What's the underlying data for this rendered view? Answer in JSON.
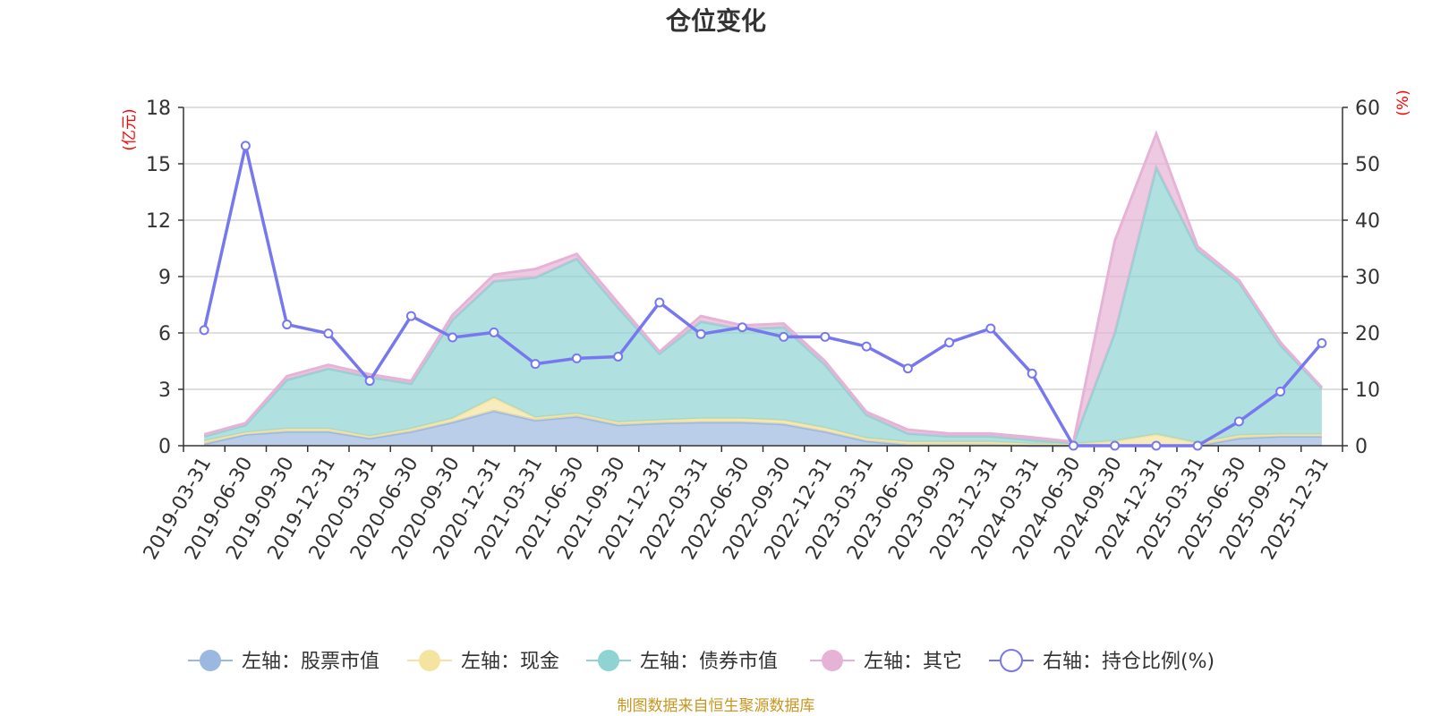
{
  "chart_data": {
    "type": "area",
    "title": "仓位变化",
    "left_axis_unit": "(亿元)",
    "right_axis_unit": "(%)",
    "left_ticks": [
      0,
      3,
      6,
      9,
      12,
      15,
      18
    ],
    "right_ticks": [
      0,
      10,
      20,
      30,
      40,
      50,
      60
    ],
    "left_ylim": [
      0,
      18
    ],
    "right_ylim": [
      0,
      60
    ],
    "grid": true,
    "stacked": true,
    "categories": [
      "2019-03-31",
      "2019-06-30",
      "2019-09-30",
      "2019-12-31",
      "2020-03-31",
      "2020-06-30",
      "2020-09-30",
      "2020-12-31",
      "2021-03-31",
      "2021-06-30",
      "2021-09-30",
      "2021-12-31",
      "2022-03-31",
      "2022-06-30",
      "2022-09-30",
      "2022-12-31",
      "2023-03-31",
      "2023-06-30",
      "2023-09-30",
      "2023-12-31",
      "2024-03-31",
      "2024-06-30",
      "2024-09-30",
      "2024-12-31",
      "2025-03-31",
      "2025-06-30",
      "2025-09-30",
      "2025-12-31"
    ],
    "series": [
      {
        "name": "左轴：股票市值",
        "axis": "left",
        "kind": "area",
        "color": "#9db8e0",
        "values": [
          0.1,
          0.6,
          0.75,
          0.75,
          0.4,
          0.75,
          1.25,
          1.85,
          1.35,
          1.55,
          1.1,
          1.2,
          1.25,
          1.25,
          1.15,
          0.75,
          0.25,
          0.05,
          0.05,
          0.05,
          0.0,
          0.0,
          0.0,
          0.0,
          0.0,
          0.4,
          0.5,
          0.5
        ]
      },
      {
        "name": "左轴：现金",
        "axis": "left",
        "kind": "area",
        "color": "#f5e4a0",
        "values": [
          0.15,
          0.1,
          0.15,
          0.15,
          0.1,
          0.15,
          0.2,
          0.7,
          0.15,
          0.15,
          0.15,
          0.15,
          0.2,
          0.2,
          0.2,
          0.2,
          0.15,
          0.15,
          0.15,
          0.15,
          0.1,
          0.1,
          0.25,
          0.6,
          0.15,
          0.15,
          0.1,
          0.1
        ]
      },
      {
        "name": "左轴：债券市值",
        "axis": "left",
        "kind": "area",
        "color": "#8fd3d3",
        "values": [
          0.25,
          0.4,
          2.6,
          3.2,
          3.15,
          2.4,
          5.25,
          6.2,
          7.45,
          8.25,
          6.1,
          3.55,
          5.15,
          4.75,
          4.95,
          3.35,
          1.25,
          0.45,
          0.3,
          0.3,
          0.2,
          0.05,
          5.75,
          14.2,
          10.25,
          8.15,
          4.75,
          2.45
        ]
      },
      {
        "name": "左轴：其它",
        "axis": "left",
        "kind": "area",
        "color": "#e6b3d6",
        "values": [
          0.1,
          0.1,
          0.2,
          0.2,
          0.15,
          0.15,
          0.25,
          0.35,
          0.45,
          0.25,
          0.25,
          0.1,
          0.3,
          0.2,
          0.2,
          0.2,
          0.15,
          0.2,
          0.15,
          0.15,
          0.15,
          0.05,
          4.9,
          1.8,
          0.2,
          0.1,
          0.15,
          0.05
        ]
      },
      {
        "name": "右轴：持仓比例(%)",
        "axis": "right",
        "kind": "line",
        "color": "#7878ee",
        "values": [
          20.5,
          53.2,
          21.5,
          19.9,
          11.5,
          23.0,
          19.2,
          20.1,
          14.5,
          15.5,
          15.8,
          25.4,
          19.8,
          21.0,
          19.3,
          19.3,
          17.6,
          13.7,
          18.3,
          20.8,
          12.8,
          0.0,
          0.0,
          0.0,
          0.0,
          4.3,
          9.6,
          18.2
        ]
      }
    ]
  },
  "legend": [
    {
      "label": "左轴：股票市值",
      "color": "#9db8e0",
      "hollow": false
    },
    {
      "label": "左轴：现金",
      "color": "#f5e4a0",
      "hollow": false
    },
    {
      "label": "左轴：债券市值",
      "color": "#8fd3d3",
      "hollow": false
    },
    {
      "label": "左轴：其它",
      "color": "#e6b3d6",
      "hollow": false
    },
    {
      "label": "右轴：持仓比例(%)",
      "color": "#7878ee",
      "hollow": true
    }
  ],
  "source_text": "制图数据来自恒生聚源数据库",
  "colors": {
    "axis_unit": "#ff0000",
    "source": "#c8961e",
    "text": "#333333",
    "grid": "#cccccc",
    "axis": "#333333"
  }
}
